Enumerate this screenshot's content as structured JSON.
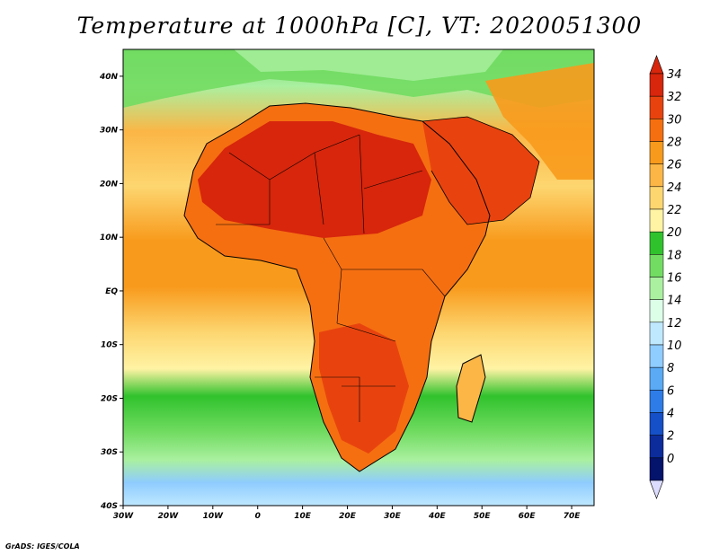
{
  "title": "Temperature at 1000hPa [C], VT: 2020051300",
  "credit": "GrADS: IGES/COLA",
  "map": {
    "lon_range": [
      -30,
      75
    ],
    "lat_range": [
      -40,
      45
    ],
    "lon_ticks": [
      "30W",
      "20W",
      "10W",
      "0",
      "10E",
      "20E",
      "30E",
      "40E",
      "50E",
      "60E",
      "70E"
    ],
    "lat_ticks": [
      "40N",
      "30N",
      "20N",
      "10N",
      "EQ",
      "10S",
      "20S",
      "30S",
      "40S"
    ]
  },
  "colorbar": {
    "labels": [
      "34",
      "32",
      "30",
      "28",
      "26",
      "24",
      "22",
      "20",
      "18",
      "16",
      "14",
      "12",
      "10",
      "8",
      "6",
      "4",
      "2",
      "0"
    ],
    "colors": [
      "#d7260c",
      "#e8430e",
      "#f56f11",
      "#f89a1c",
      "#fbb646",
      "#fdd670",
      "#fff3a4",
      "#30c22d",
      "#72dc62",
      "#aaf0a0",
      "#dcffe8",
      "#bfe8ff",
      "#8fccff",
      "#5aaaf6",
      "#2e7ce8",
      "#1650c8",
      "#0c2c9c",
      "#04146c"
    ],
    "top_color": "#d7260c",
    "bottom_color": "#dcdcff"
  }
}
